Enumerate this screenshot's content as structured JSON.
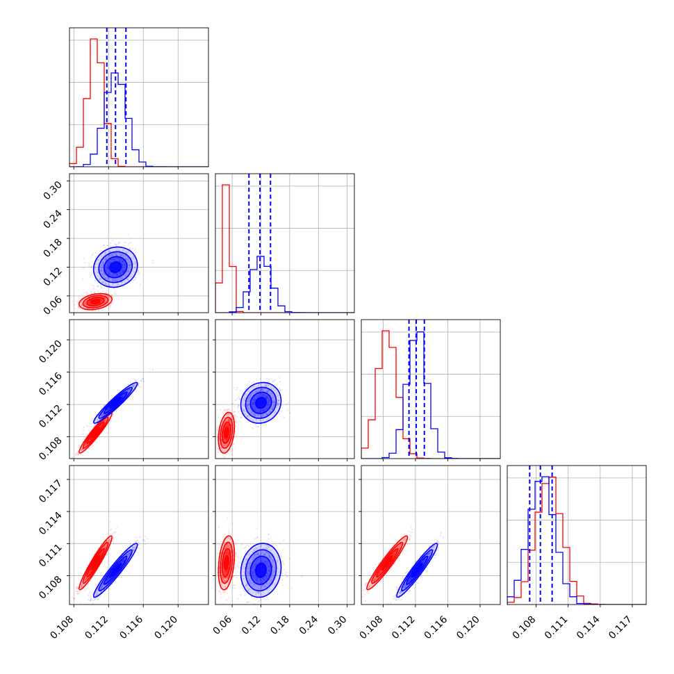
{
  "chart_data": {
    "type": "corner",
    "description_free": true,
    "grid": true,
    "series": [
      {
        "name": "",
        "color": "#ff0000",
        "mean": [
          0.1105,
          0.048,
          0.1085,
          0.1092
        ],
        "std": [
          0.0009,
          0.008,
          0.0012,
          0.0012
        ],
        "corr": [
          [
            1,
            0.3,
            0.95,
            0.95
          ],
          [
            0.3,
            1,
            0.3,
            0.3
          ],
          [
            0.95,
            0.3,
            1,
            0.95
          ],
          [
            0.95,
            0.3,
            0.95,
            1
          ]
        ]
      },
      {
        "name": "",
        "color": "#0000ff",
        "mean": [
          0.1128,
          0.12,
          0.1122,
          0.1085
        ],
        "std": [
          0.0012,
          0.02,
          0.0012,
          0.0012
        ],
        "corr": [
          [
            1,
            0.1,
            0.95,
            0.95
          ],
          [
            0.1,
            1,
            0.1,
            0.1
          ],
          [
            0.95,
            0.1,
            1,
            0.95
          ],
          [
            0.95,
            0.1,
            0.95,
            1
          ]
        ],
        "quantiles": [
          [
            0.1118,
            0.1128,
            0.114
          ],
          [
            0.095,
            0.118,
            0.14
          ],
          [
            0.1112,
            0.1121,
            0.1131
          ],
          [
            0.1074,
            0.1084,
            0.1095
          ]
        ]
      }
    ],
    "axes": [
      {
        "range": [
          0.1075,
          0.1235
        ],
        "ticks": [
          0.108,
          0.112,
          0.116,
          0.12
        ],
        "tick_labels": [
          "0.108",
          "0.112",
          "0.116",
          "0.120"
        ]
      },
      {
        "range": [
          0.025,
          0.315
        ],
        "ticks": [
          0.06,
          0.12,
          0.18,
          0.24,
          0.3
        ],
        "tick_labels": [
          "0.06",
          "0.12",
          "0.18",
          "0.24",
          "0.30"
        ]
      },
      {
        "range": [
          0.1053,
          0.1225
        ],
        "ticks": [
          0.108,
          0.112,
          0.116,
          0.12
        ],
        "tick_labels": [
          "0.108",
          "0.112",
          "0.116",
          "0.120"
        ]
      },
      {
        "range": [
          0.1053,
          0.1183
        ],
        "ticks": [
          0.108,
          0.111,
          0.114,
          0.117
        ],
        "tick_labels": [
          "0.108",
          "0.111",
          "0.114",
          "0.117"
        ]
      }
    ],
    "hist_peaks": [
      {
        "red": [
          0.1095,
          0.111
        ],
        "blue": [
          0.1125,
          0.113
        ]
      },
      {
        "red": [
          0.035,
          0.05
        ],
        "blue": [
          0.11,
          0.13
        ]
      },
      {
        "red": [
          0.108,
          0.109
        ],
        "blue": [
          0.1115,
          0.1125
        ]
      },
      {
        "red": [
          0.109,
          0.11
        ],
        "blue": [
          0.108,
          0.109
        ]
      }
    ]
  }
}
